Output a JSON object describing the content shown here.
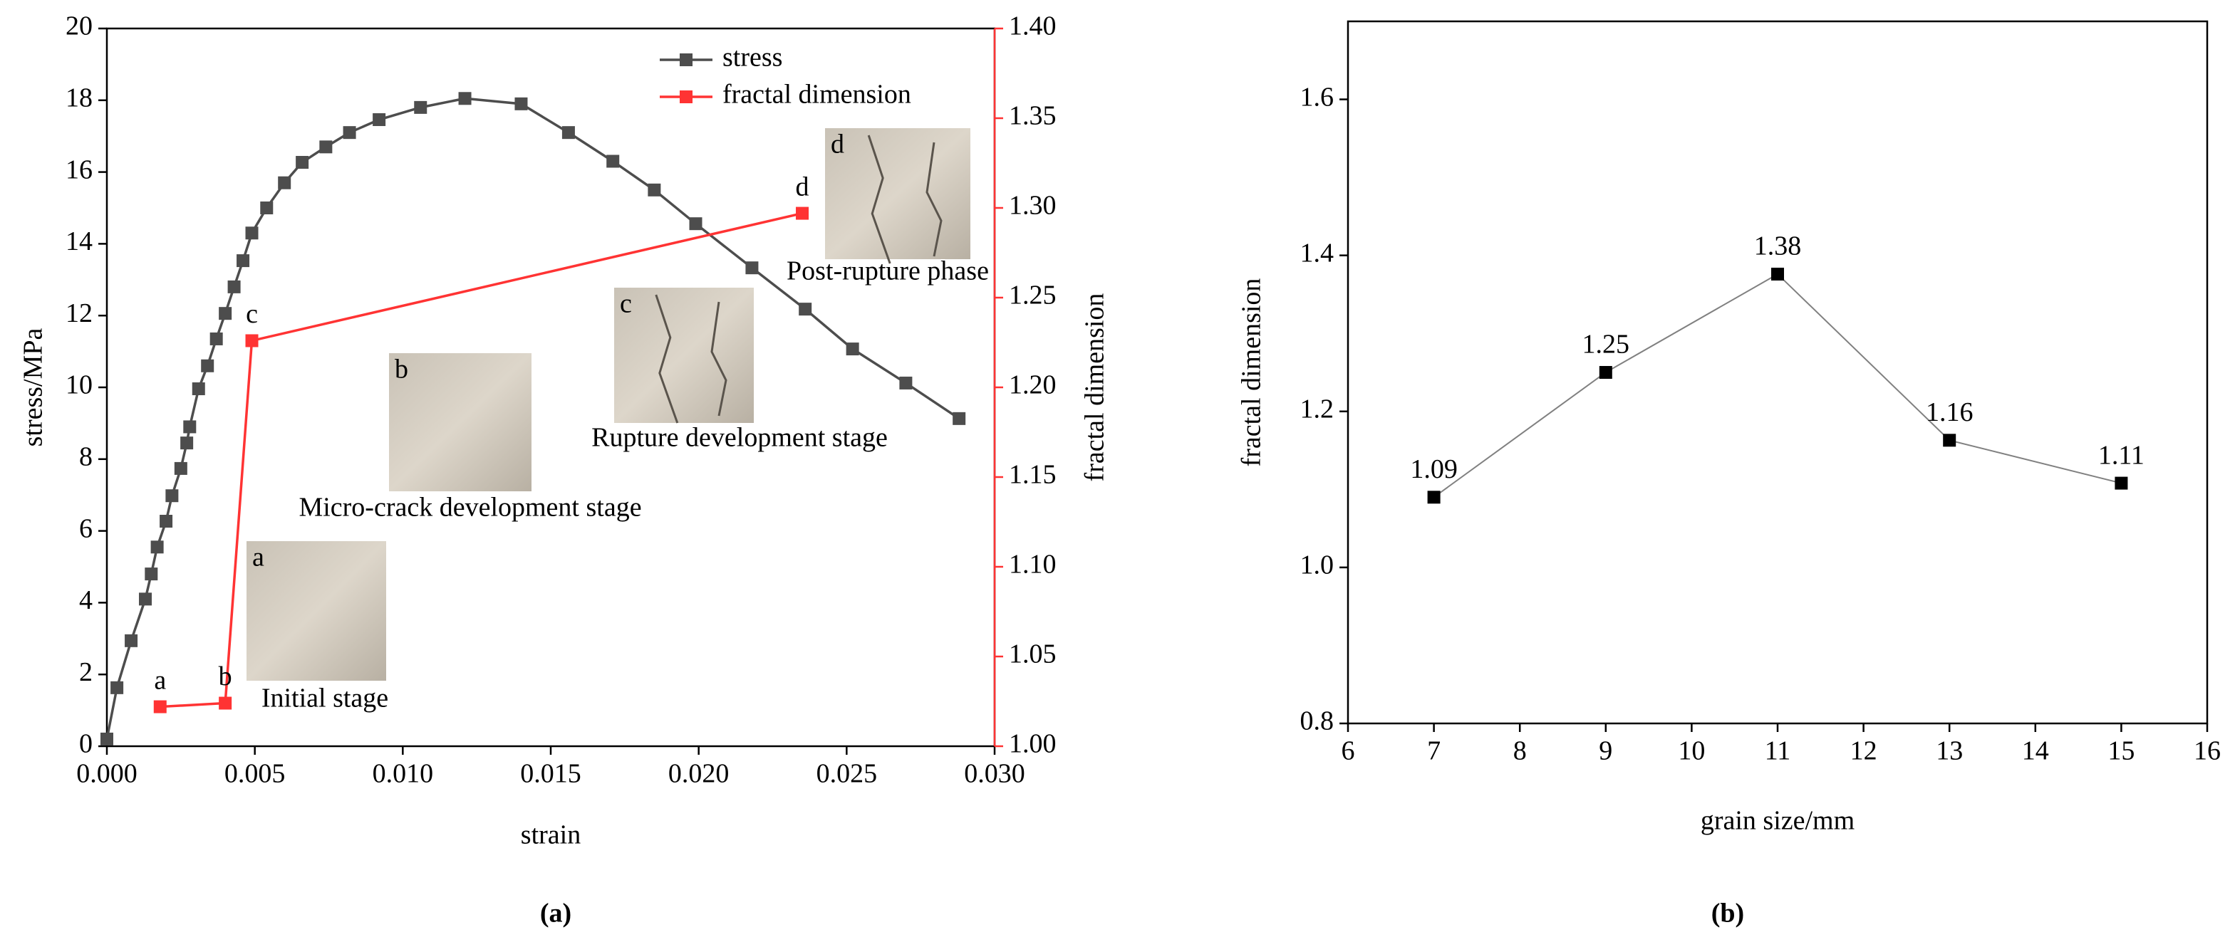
{
  "chart_data": [
    {
      "type": "line",
      "panel_label": "(a)",
      "x_label": "strain",
      "y_label": "stress/MPa",
      "y2_label": "fractal dimension",
      "y2_color": "#ff3333",
      "xlim": [
        0,
        0.03
      ],
      "xticks": [
        {
          "value": 0,
          "label": "0.000"
        },
        {
          "value": 0.005,
          "label": "0.005"
        },
        {
          "value": 0.01,
          "label": "0.010"
        },
        {
          "value": 0.015,
          "label": "0.015"
        },
        {
          "value": 0.02,
          "label": "0.020"
        },
        {
          "value": 0.025,
          "label": "0.025"
        },
        {
          "value": 0.03,
          "label": "0.030"
        }
      ],
      "ylim": [
        0,
        20
      ],
      "yticks": [
        0,
        2,
        4,
        6,
        8,
        10,
        12,
        14,
        16,
        18,
        20
      ],
      "y2lim": [
        1.0,
        1.4
      ],
      "y2ticks": [
        {
          "value": 1.0,
          "label": "1.00"
        },
        1.05,
        {
          "value": 1.1,
          "label": "1.10"
        },
        1.15,
        {
          "value": 1.2,
          "label": "1.20"
        },
        1.25,
        {
          "value": 1.3,
          "label": "1.30"
        },
        1.35,
        {
          "value": 1.4,
          "label": "1.40"
        }
      ],
      "legend": "upper right",
      "series": [
        {
          "name": "stress",
          "color": "#4d4d4d",
          "x": [
            0,
            0.00034,
            0.00082,
            0.0013,
            0.0015,
            0.0017,
            0.002,
            0.0022,
            0.0025,
            0.0027,
            0.0028,
            0.0031,
            0.0034,
            0.0037,
            0.004,
            0.0043,
            0.0046,
            0.0049,
            0.0054,
            0.006,
            0.0066,
            0.0074,
            0.0082,
            0.0092,
            0.0106,
            0.0121,
            0.014,
            0.0156,
            0.0171,
            0.0185,
            0.0199,
            0.0218,
            0.0236,
            0.0252,
            0.027,
            0.0288
          ],
          "values": [
            0.2,
            1.63,
            2.94,
            4.1,
            4.8,
            5.55,
            6.27,
            6.98,
            7.74,
            8.45,
            8.9,
            9.96,
            10.6,
            11.35,
            12.06,
            12.8,
            13.53,
            14.3,
            15.0,
            15.7,
            16.27,
            16.7,
            17.1,
            17.46,
            17.8,
            18.05,
            17.9,
            17.1,
            16.3,
            15.5,
            14.56,
            13.33,
            12.18,
            11.07,
            10.12,
            9.13
          ]
        },
        {
          "name": "fractal dimension",
          "color": "#ff3333",
          "axis": "y2",
          "x": [
            0.0018,
            0.004,
            0.0049,
            0.0235
          ],
          "values": [
            1.022,
            1.024,
            1.226,
            1.297
          ],
          "point_labels": [
            "a",
            "b",
            "c",
            "d"
          ]
        }
      ],
      "annotations": [
        {
          "label": "a",
          "caption": "Initial stage"
        },
        {
          "label": "b",
          "caption": "Micro-crack development stage"
        },
        {
          "label": "c",
          "caption": "Rupture development stage"
        },
        {
          "label": "d",
          "caption": "Post-rupture phase"
        }
      ]
    },
    {
      "type": "line",
      "panel_label": "(b)",
      "x_label": "grain size/mm",
      "y_label": "fractal dimension",
      "xlim": [
        6,
        16
      ],
      "xticks": [
        6,
        7,
        8,
        9,
        10,
        11,
        12,
        13,
        14,
        15,
        16
      ],
      "ylim": [
        0.8,
        1.7
      ],
      "yticks": [
        0.8,
        {
          "value": 1.0,
          "label": "1.0"
        },
        1.2,
        1.4,
        1.6
      ],
      "color": "#000000",
      "line_color": "#808080",
      "x": [
        7,
        9,
        11,
        13,
        15
      ],
      "values": [
        1.09,
        1.25,
        1.376,
        1.163,
        1.108
      ],
      "value_labels": [
        "1.09",
        "1.25",
        "1.38",
        "1.16",
        "1.11"
      ]
    }
  ]
}
